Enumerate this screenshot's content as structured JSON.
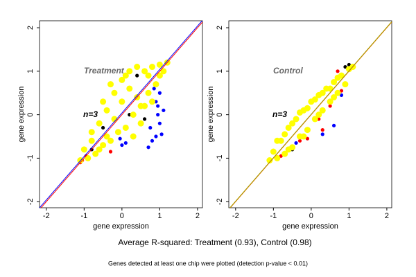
{
  "chart_data": [
    {
      "type": "scatter",
      "annotation": "Treatment",
      "n_label": "n=3",
      "xlabel": "gene expression",
      "ylabel": "gene expression",
      "xlim": [
        -2.18,
        2.13
      ],
      "ylim": [
        -2.14,
        2.16
      ],
      "xticks": [
        -2,
        -1,
        0,
        1,
        2
      ],
      "yticks": [
        -2,
        -1,
        0,
        1,
        2
      ],
      "reference_lines": [
        {
          "color": "#ff0000",
          "slope": 1,
          "intercept": 0
        },
        {
          "color": "#0000ff",
          "slope": 1,
          "intercept": 0.04
        }
      ],
      "series": [
        {
          "color": "#000000",
          "x": [
            -0.5,
            0.2,
            0.6,
            -0.8,
            0.4
          ],
          "values": [
            -0.3,
            0.0,
            -0.1,
            -0.8,
            0.9
          ]
        },
        {
          "color": "#ff0000",
          "x": [
            -1.1,
            -1.05,
            -0.95,
            -0.3
          ],
          "values": [
            -1.1,
            -1.05,
            -0.95,
            -0.85
          ]
        },
        {
          "color": "#0000ff",
          "x": [
            0.85,
            0.9,
            0.95,
            1.0,
            1.05,
            0.9,
            1.0,
            0.8,
            0.95,
            1.1,
            0.0,
            0.1,
            -0.05,
            0.7,
            0.75
          ],
          "values": [
            0.6,
            0.3,
            0.0,
            -0.2,
            -0.45,
            -0.5,
            0.5,
            -0.6,
            0.2,
            0.1,
            -0.7,
            -0.65,
            -0.55,
            -0.75,
            -0.3
          ]
        },
        {
          "color": "#ffff00",
          "x": [
            -1.1,
            -1.0,
            -0.9,
            -0.8,
            -0.7,
            -0.6,
            -0.5,
            -0.4,
            -0.3,
            -0.2,
            -0.1,
            0,
            0.1,
            0.2,
            0.3,
            0.4,
            0.5,
            0.6,
            0.7,
            0.8,
            0.9,
            1.0,
            1.1,
            1.2,
            -0.6,
            -0.4,
            -0.2,
            0,
            0.2,
            0.4,
            0.6,
            0.8,
            -0.8,
            -0.5,
            -0.3,
            0.1,
            0.3,
            0.5,
            0.7,
            1.0
          ],
          "values": [
            -1.05,
            -0.8,
            -1.0,
            -0.4,
            -0.9,
            -0.2,
            -0.7,
            0.1,
            -0.6,
            0.5,
            -0.4,
            0.8,
            -0.3,
            1.0,
            0.0,
            1.1,
            0.2,
            1.0,
            0.5,
            1.1,
            0.7,
            1.15,
            1.0,
            1.2,
            -0.8,
            -0.5,
            -0.1,
            0.3,
            0.6,
            0.4,
            0.2,
            0.3,
            -0.6,
            0.3,
            0.7,
            0.9,
            -0.5,
            -0.2,
            0.9,
            0.9
          ]
        }
      ]
    },
    {
      "type": "scatter",
      "annotation": "Control",
      "n_label": "n=3",
      "xlabel": "gene expression",
      "ylabel": "gene expression",
      "xlim": [
        -2.18,
        2.13
      ],
      "ylim": [
        -2.14,
        2.16
      ],
      "xticks": [
        -2,
        -1,
        0,
        1,
        2
      ],
      "yticks": [
        -2,
        -1,
        0,
        1,
        2
      ],
      "reference_lines": [
        {
          "color": "#ff6600",
          "slope": 1,
          "intercept": 0
        },
        {
          "color": "#a0a000",
          "slope": 1,
          "intercept": 0.01
        }
      ],
      "series": [
        {
          "color": "#000000",
          "x": [
            0.9,
            1.0,
            -0.5
          ],
          "values": [
            1.1,
            1.15,
            -0.8
          ]
        },
        {
          "color": "#0000ff",
          "x": [
            0.6,
            0.8,
            0.3,
            -0.4
          ],
          "values": [
            -0.25,
            0.45,
            -0.45,
            -0.65
          ]
        },
        {
          "color": "#ff0000",
          "x": [
            -0.8,
            -0.6,
            -0.3,
            -0.1,
            0.2,
            0.5,
            0.7,
            0.8,
            -0.9,
            0.3
          ],
          "values": [
            -0.95,
            -0.8,
            -0.6,
            -0.55,
            -0.1,
            0.2,
            1.0,
            0.55,
            -1.0,
            -0.35
          ]
        },
        {
          "color": "#ffff00",
          "x": [
            -1.1,
            -1.0,
            -0.9,
            -0.8,
            -0.7,
            -0.6,
            -0.5,
            -0.4,
            -0.3,
            -0.2,
            -0.1,
            0,
            0.1,
            0.2,
            0.3,
            0.4,
            0.5,
            0.6,
            0.7,
            0.8,
            0.9,
            1.0,
            1.1,
            -0.9,
            -0.7,
            -0.5,
            -0.3,
            -0.1,
            0.1,
            0.3,
            0.5,
            0.7,
            -0.6,
            -0.2,
            0.2,
            0.6
          ],
          "values": [
            -1.05,
            -0.85,
            -1.0,
            -0.6,
            -0.9,
            -0.3,
            -0.75,
            -0.1,
            -0.5,
            0.1,
            -0.35,
            0.3,
            -0.1,
            0.45,
            0.1,
            0.6,
            0.3,
            0.75,
            0.5,
            0.9,
            0.7,
            1.05,
            1.1,
            -0.6,
            -0.45,
            -0.2,
            0.05,
            0.15,
            0.35,
            0.5,
            0.6,
            0.85,
            -0.8,
            -0.5,
            0.0,
            0.4
          ]
        }
      ]
    }
  ],
  "caption": "Average R-squared: Treatment (0.93), Control (0.98)",
  "footnote": "Genes detected at least one chip were plotted (detection p-value < 0.01)"
}
